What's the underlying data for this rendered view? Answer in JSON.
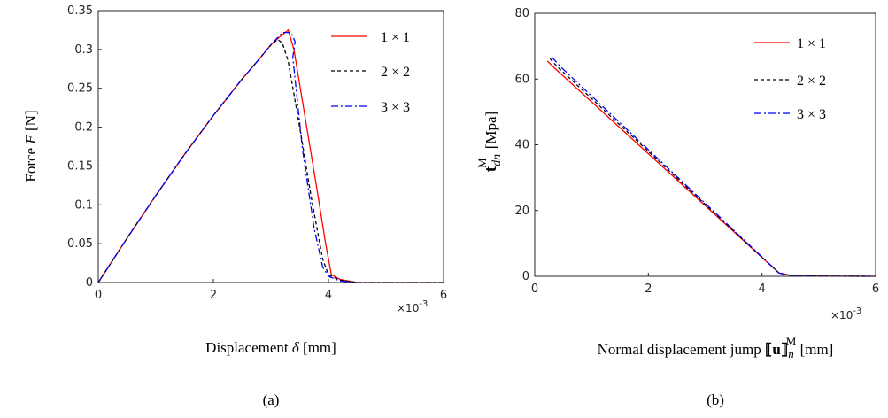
{
  "chart_data": [
    {
      "type": "line",
      "panel": "(a)",
      "xlabel_prefix": "Displacement ",
      "xlabel_symbol": "δ",
      "xlabel_suffix": " [mm]",
      "ylabel_prefix": "Force ",
      "ylabel_symbol": "F",
      "ylabel_suffix": " [N]",
      "x_multiplier_base": "×10",
      "x_multiplier_exp": "-3",
      "xlim": [
        0,
        6
      ],
      "ylim": [
        0,
        0.35
      ],
      "xticks": [
        "0",
        "2",
        "4",
        "6"
      ],
      "yticks": [
        "0",
        "0.05",
        "0.1",
        "0.15",
        "0.2",
        "0.25",
        "0.3",
        "0.35"
      ],
      "legend_position": "top-right",
      "series": [
        {
          "name": "1 × 1",
          "color": "#ff0000",
          "dash": "solid",
          "x": [
            0,
            0.5,
            1.0,
            1.5,
            2.0,
            2.5,
            2.8,
            3.0,
            3.15,
            3.3,
            3.4,
            3.6,
            3.8,
            3.95,
            4.05,
            4.2,
            4.5,
            6.0
          ],
          "y": [
            0,
            0.057,
            0.112,
            0.165,
            0.215,
            0.262,
            0.288,
            0.306,
            0.316,
            0.325,
            0.3,
            0.21,
            0.12,
            0.05,
            0.01,
            0.004,
            0,
            0
          ]
        },
        {
          "name": "2 × 2",
          "color": "#000000",
          "dash": "dashed",
          "x": [
            0,
            0.5,
            1.0,
            1.5,
            2.0,
            2.5,
            2.8,
            3.0,
            3.12,
            3.2,
            3.3,
            3.5,
            3.7,
            3.9,
            4.0,
            4.2,
            4.5,
            6.0
          ],
          "y": [
            0,
            0.057,
            0.112,
            0.165,
            0.215,
            0.262,
            0.288,
            0.306,
            0.313,
            0.308,
            0.285,
            0.2,
            0.11,
            0.03,
            0.01,
            0.003,
            0,
            0
          ]
        },
        {
          "name": "3 × 3",
          "color": "#0000ff",
          "dash": "dashdot",
          "x": [
            0,
            0.5,
            1.0,
            1.5,
            2.0,
            2.5,
            2.8,
            3.0,
            3.2,
            3.35,
            3.42,
            3.38,
            3.55,
            3.75,
            3.9,
            4.0,
            4.2,
            4.5,
            6.0
          ],
          "y": [
            0,
            0.057,
            0.112,
            0.165,
            0.215,
            0.262,
            0.288,
            0.306,
            0.322,
            0.322,
            0.31,
            0.29,
            0.17,
            0.07,
            0.02,
            0.008,
            0.002,
            0,
            0
          ]
        }
      ]
    },
    {
      "type": "line",
      "panel": "(b)",
      "xlabel_prefix": "Normal displacement jump ",
      "xlabel_symbol": "⟦u⟧",
      "xlabel_sub": "n",
      "xlabel_sup": "M",
      "xlabel_suffix": " [mm]",
      "ylabel_symbol": "t",
      "ylabel_sub": "dn",
      "ylabel_sup": "M",
      "ylabel_suffix": "[Mpa]",
      "x_multiplier_base": "×10",
      "x_multiplier_exp": "-3",
      "xlim": [
        0,
        6
      ],
      "ylim": [
        0,
        80
      ],
      "xticks": [
        "0",
        "2",
        "4",
        "6"
      ],
      "yticks": [
        "0",
        "20",
        "40",
        "60",
        "80"
      ],
      "legend_position": "top-right",
      "series": [
        {
          "name": "1 × 1",
          "color": "#ff0000",
          "dash": "solid",
          "x": [
            0.22,
            0.35,
            4.3,
            4.5,
            5.0,
            6.0
          ],
          "y": [
            65.5,
            63.3,
            1.0,
            0.3,
            0.05,
            0
          ]
        },
        {
          "name": "2 × 2",
          "color": "#000000",
          "dash": "dashed",
          "x": [
            0.27,
            0.4,
            4.3,
            4.5,
            5.0,
            6.0
          ],
          "y": [
            66.2,
            63.7,
            1.0,
            0.3,
            0.05,
            0
          ]
        },
        {
          "name": "3 × 3",
          "color": "#0000ff",
          "dash": "dashdot",
          "x": [
            0.3,
            0.45,
            4.3,
            4.5,
            5.0,
            6.0
          ],
          "y": [
            66.7,
            63.8,
            1.0,
            0.3,
            0.05,
            0
          ]
        }
      ]
    }
  ]
}
